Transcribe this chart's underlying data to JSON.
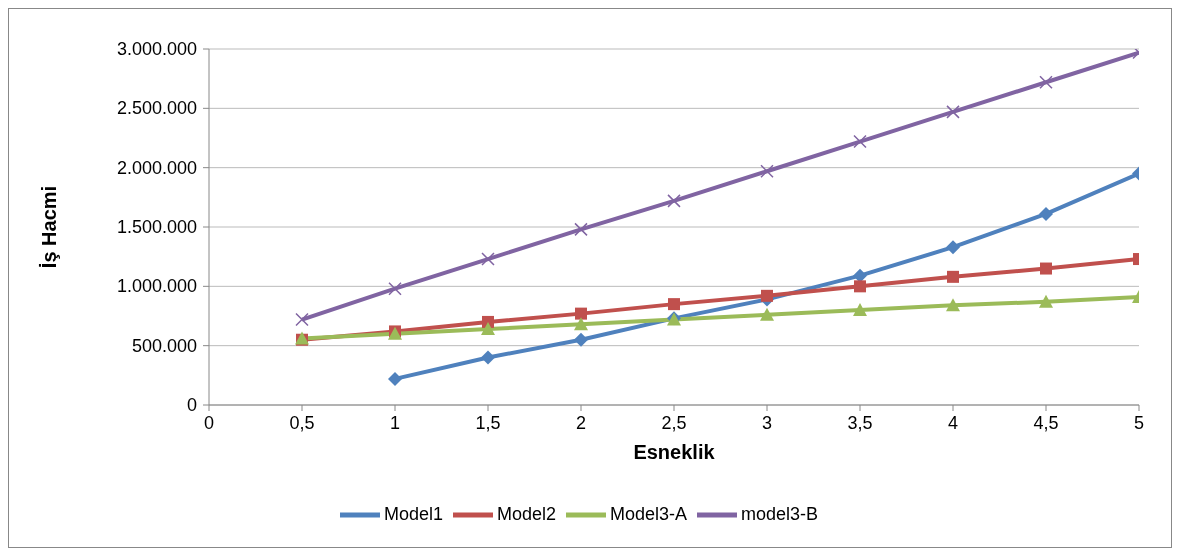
{
  "chart_data": {
    "type": "line",
    "xlabel": "Esneklik",
    "ylabel": "İş Hacmi",
    "x": [
      0.5,
      1,
      1.5,
      2,
      2.5,
      3,
      3.5,
      4,
      4.5,
      5
    ],
    "series": [
      {
        "name": "Model1",
        "color": "#4f81bd",
        "marker": "diamond",
        "values": [
          null,
          220000,
          400000,
          550000,
          730000,
          890000,
          1090000,
          1330000,
          1610000,
          1950000
        ]
      },
      {
        "name": "Model2",
        "color": "#c0504d",
        "marker": "square",
        "values": [
          550000,
          620000,
          700000,
          770000,
          850000,
          920000,
          1000000,
          1080000,
          1150000,
          1230000
        ]
      },
      {
        "name": "Model3-A",
        "color": "#9bbb59",
        "marker": "triangle",
        "values": [
          560000,
          600000,
          640000,
          680000,
          720000,
          760000,
          800000,
          840000,
          870000,
          910000
        ]
      },
      {
        "name": "model3-B",
        "color": "#8064a2",
        "marker": "cross",
        "values": [
          720000,
          980000,
          1230000,
          1480000,
          1720000,
          1970000,
          2220000,
          2470000,
          2720000,
          2970000
        ]
      }
    ],
    "xlim": [
      0,
      5
    ],
    "xticks": [
      0,
      {
        "value": 0.5,
        "label": "0,5"
      },
      1,
      {
        "value": 1.5,
        "label": "1,5"
      },
      2,
      {
        "value": 2.5,
        "label": "2,5"
      },
      3,
      {
        "value": 3.5,
        "label": "3,5"
      },
      4,
      {
        "value": 4.5,
        "label": "4,5"
      },
      5
    ],
    "ylim": [
      0,
      3000000
    ],
    "yticks": [
      0,
      {
        "value": 500000,
        "label": "500.000"
      },
      {
        "value": 1000000,
        "label": "1.000.000"
      },
      {
        "value": 1500000,
        "label": "1.500.000"
      },
      {
        "value": 2000000,
        "label": "2.000.000"
      },
      {
        "value": 2500000,
        "label": "2.500.000"
      },
      {
        "value": 3000000,
        "label": "3.000.000"
      }
    ],
    "grid": "y",
    "legend": "bottom",
    "line_style": "solid"
  }
}
